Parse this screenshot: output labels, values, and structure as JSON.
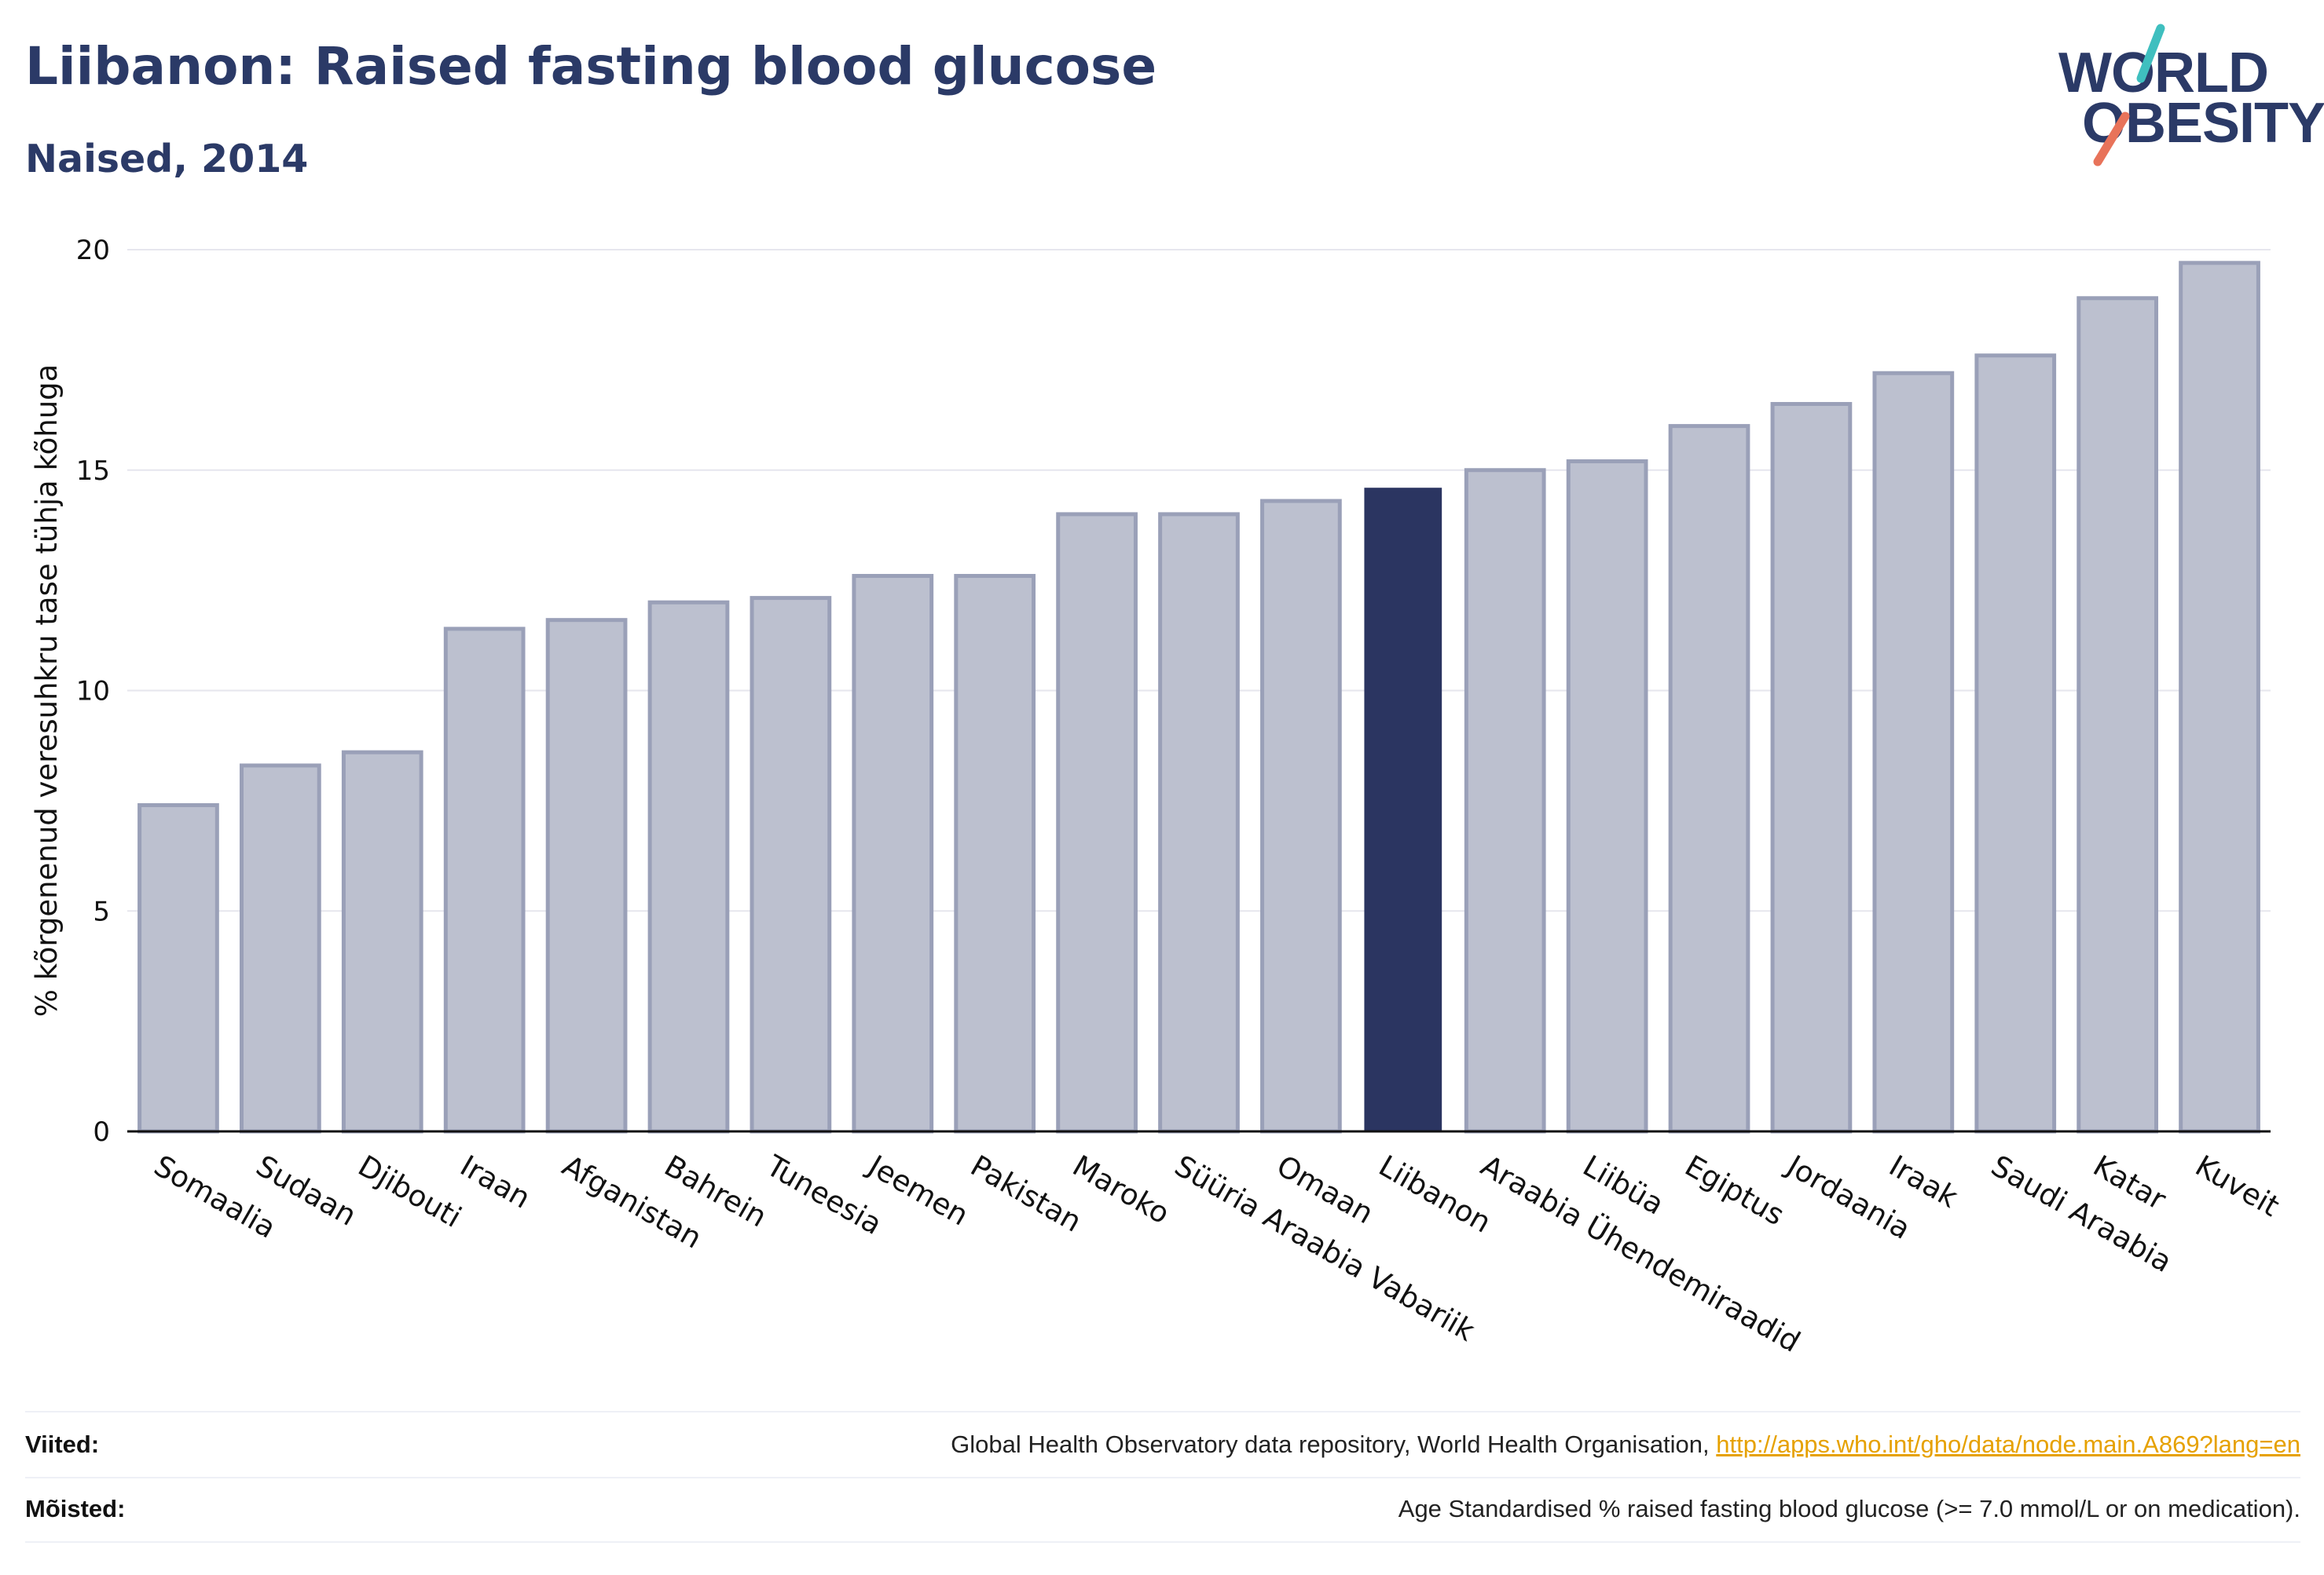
{
  "header": {
    "title": "Liibanon: Raised fasting blood glucose",
    "subtitle": "Naised, 2014"
  },
  "logo": {
    "line1": "WORLD",
    "line2": "OBESITY",
    "slash_top_color": "#3fbfbf",
    "slash_bottom_color": "#e8735a"
  },
  "colors": {
    "bar_fill": "#bcc0cf",
    "bar_stroke": "#9aa0b8",
    "highlight": "#2b3561",
    "grid": "#e6e6ee",
    "axis": "#111111"
  },
  "chart_data": {
    "type": "bar",
    "ylabel": "% kõrgenenud veresuhkru tase tühja kõhuga",
    "ylim": [
      0,
      20
    ],
    "yticks": [
      0,
      5,
      10,
      15,
      20
    ],
    "grid": true,
    "highlight_category": "Liibanon",
    "categories": [
      "Somaalia",
      "Sudaan",
      "Djibouti",
      "Iraan",
      "Afganistan",
      "Bahrein",
      "Tuneesia",
      "Jeemen",
      "Pakistan",
      "Maroko",
      "Süüria Araabia Vabariik",
      "Omaan",
      "Liibanon",
      "Araabia Ühendemiraadid",
      "Liibüa",
      "Egiptus",
      "Jordaania",
      "Iraak",
      "Saudi Araabia",
      "Katar",
      "Kuveit"
    ],
    "values": [
      7.4,
      8.3,
      8.6,
      11.4,
      11.6,
      12.0,
      12.1,
      12.6,
      12.6,
      14.0,
      14.0,
      14.3,
      14.6,
      15.0,
      15.2,
      16.0,
      16.5,
      17.2,
      17.6,
      18.9,
      19.7
    ]
  },
  "footer": {
    "sources_label": "Viited:",
    "sources_text": "Global Health Observatory data repository, World Health Organisation,",
    "sources_link": "http://apps.who.int/gho/data/node.main.A869?lang=en",
    "definitions_label": "Mõisted:",
    "definitions_text": "Age Standardised % raised fasting blood glucose (>= 7.0 mmol/L or on medication)."
  }
}
